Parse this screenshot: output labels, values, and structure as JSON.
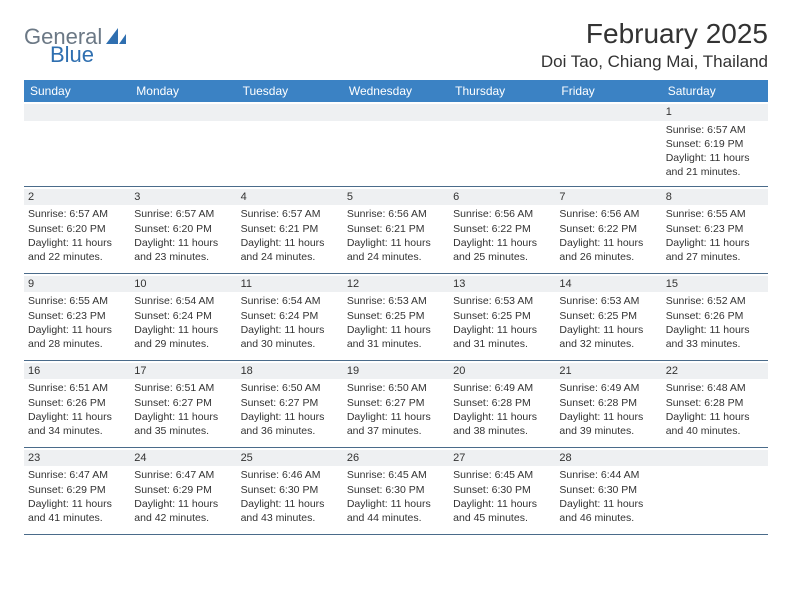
{
  "brand": {
    "part1": "General",
    "part2": "Blue"
  },
  "header": {
    "month_title": "February 2025",
    "location": "Doi Tao, Chiang Mai, Thailand"
  },
  "colors": {
    "header_bar": "#3b82c4",
    "daynum_bg": "#eef0f2",
    "week_border": "#4a6b8a",
    "logo_gray": "#6b7885",
    "logo_blue": "#2f6fb0"
  },
  "day_names": [
    "Sunday",
    "Monday",
    "Tuesday",
    "Wednesday",
    "Thursday",
    "Friday",
    "Saturday"
  ],
  "weeks": [
    [
      null,
      null,
      null,
      null,
      null,
      null,
      {
        "d": "1",
        "sr": "Sunrise: 6:57 AM",
        "ss": "Sunset: 6:19 PM",
        "dl1": "Daylight: 11 hours",
        "dl2": "and 21 minutes."
      }
    ],
    [
      {
        "d": "2",
        "sr": "Sunrise: 6:57 AM",
        "ss": "Sunset: 6:20 PM",
        "dl1": "Daylight: 11 hours",
        "dl2": "and 22 minutes."
      },
      {
        "d": "3",
        "sr": "Sunrise: 6:57 AM",
        "ss": "Sunset: 6:20 PM",
        "dl1": "Daylight: 11 hours",
        "dl2": "and 23 minutes."
      },
      {
        "d": "4",
        "sr": "Sunrise: 6:57 AM",
        "ss": "Sunset: 6:21 PM",
        "dl1": "Daylight: 11 hours",
        "dl2": "and 24 minutes."
      },
      {
        "d": "5",
        "sr": "Sunrise: 6:56 AM",
        "ss": "Sunset: 6:21 PM",
        "dl1": "Daylight: 11 hours",
        "dl2": "and 24 minutes."
      },
      {
        "d": "6",
        "sr": "Sunrise: 6:56 AM",
        "ss": "Sunset: 6:22 PM",
        "dl1": "Daylight: 11 hours",
        "dl2": "and 25 minutes."
      },
      {
        "d": "7",
        "sr": "Sunrise: 6:56 AM",
        "ss": "Sunset: 6:22 PM",
        "dl1": "Daylight: 11 hours",
        "dl2": "and 26 minutes."
      },
      {
        "d": "8",
        "sr": "Sunrise: 6:55 AM",
        "ss": "Sunset: 6:23 PM",
        "dl1": "Daylight: 11 hours",
        "dl2": "and 27 minutes."
      }
    ],
    [
      {
        "d": "9",
        "sr": "Sunrise: 6:55 AM",
        "ss": "Sunset: 6:23 PM",
        "dl1": "Daylight: 11 hours",
        "dl2": "and 28 minutes."
      },
      {
        "d": "10",
        "sr": "Sunrise: 6:54 AM",
        "ss": "Sunset: 6:24 PM",
        "dl1": "Daylight: 11 hours",
        "dl2": "and 29 minutes."
      },
      {
        "d": "11",
        "sr": "Sunrise: 6:54 AM",
        "ss": "Sunset: 6:24 PM",
        "dl1": "Daylight: 11 hours",
        "dl2": "and 30 minutes."
      },
      {
        "d": "12",
        "sr": "Sunrise: 6:53 AM",
        "ss": "Sunset: 6:25 PM",
        "dl1": "Daylight: 11 hours",
        "dl2": "and 31 minutes."
      },
      {
        "d": "13",
        "sr": "Sunrise: 6:53 AM",
        "ss": "Sunset: 6:25 PM",
        "dl1": "Daylight: 11 hours",
        "dl2": "and 31 minutes."
      },
      {
        "d": "14",
        "sr": "Sunrise: 6:53 AM",
        "ss": "Sunset: 6:25 PM",
        "dl1": "Daylight: 11 hours",
        "dl2": "and 32 minutes."
      },
      {
        "d": "15",
        "sr": "Sunrise: 6:52 AM",
        "ss": "Sunset: 6:26 PM",
        "dl1": "Daylight: 11 hours",
        "dl2": "and 33 minutes."
      }
    ],
    [
      {
        "d": "16",
        "sr": "Sunrise: 6:51 AM",
        "ss": "Sunset: 6:26 PM",
        "dl1": "Daylight: 11 hours",
        "dl2": "and 34 minutes."
      },
      {
        "d": "17",
        "sr": "Sunrise: 6:51 AM",
        "ss": "Sunset: 6:27 PM",
        "dl1": "Daylight: 11 hours",
        "dl2": "and 35 minutes."
      },
      {
        "d": "18",
        "sr": "Sunrise: 6:50 AM",
        "ss": "Sunset: 6:27 PM",
        "dl1": "Daylight: 11 hours",
        "dl2": "and 36 minutes."
      },
      {
        "d": "19",
        "sr": "Sunrise: 6:50 AM",
        "ss": "Sunset: 6:27 PM",
        "dl1": "Daylight: 11 hours",
        "dl2": "and 37 minutes."
      },
      {
        "d": "20",
        "sr": "Sunrise: 6:49 AM",
        "ss": "Sunset: 6:28 PM",
        "dl1": "Daylight: 11 hours",
        "dl2": "and 38 minutes."
      },
      {
        "d": "21",
        "sr": "Sunrise: 6:49 AM",
        "ss": "Sunset: 6:28 PM",
        "dl1": "Daylight: 11 hours",
        "dl2": "and 39 minutes."
      },
      {
        "d": "22",
        "sr": "Sunrise: 6:48 AM",
        "ss": "Sunset: 6:28 PM",
        "dl1": "Daylight: 11 hours",
        "dl2": "and 40 minutes."
      }
    ],
    [
      {
        "d": "23",
        "sr": "Sunrise: 6:47 AM",
        "ss": "Sunset: 6:29 PM",
        "dl1": "Daylight: 11 hours",
        "dl2": "and 41 minutes."
      },
      {
        "d": "24",
        "sr": "Sunrise: 6:47 AM",
        "ss": "Sunset: 6:29 PM",
        "dl1": "Daylight: 11 hours",
        "dl2": "and 42 minutes."
      },
      {
        "d": "25",
        "sr": "Sunrise: 6:46 AM",
        "ss": "Sunset: 6:30 PM",
        "dl1": "Daylight: 11 hours",
        "dl2": "and 43 minutes."
      },
      {
        "d": "26",
        "sr": "Sunrise: 6:45 AM",
        "ss": "Sunset: 6:30 PM",
        "dl1": "Daylight: 11 hours",
        "dl2": "and 44 minutes."
      },
      {
        "d": "27",
        "sr": "Sunrise: 6:45 AM",
        "ss": "Sunset: 6:30 PM",
        "dl1": "Daylight: 11 hours",
        "dl2": "and 45 minutes."
      },
      {
        "d": "28",
        "sr": "Sunrise: 6:44 AM",
        "ss": "Sunset: 6:30 PM",
        "dl1": "Daylight: 11 hours",
        "dl2": "and 46 minutes."
      },
      null
    ]
  ]
}
